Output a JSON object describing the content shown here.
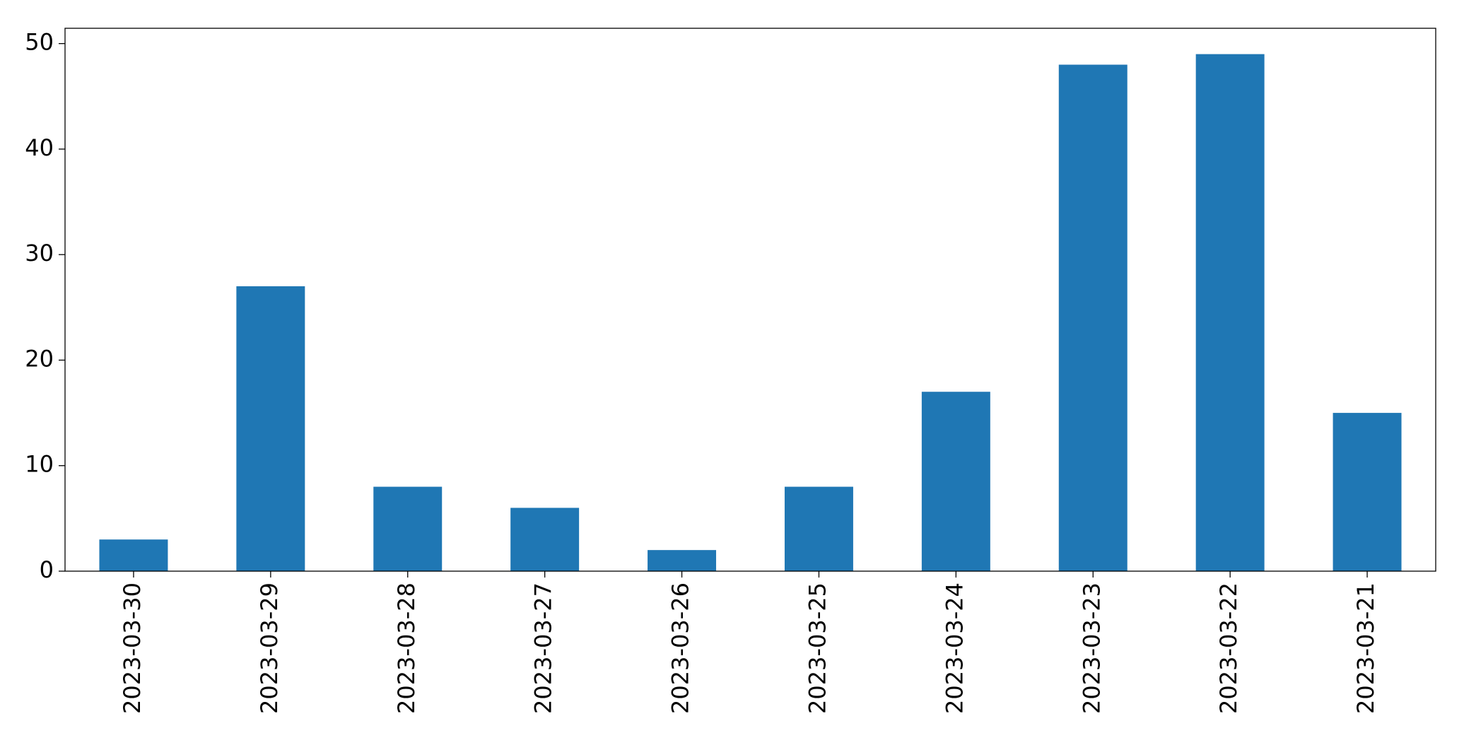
{
  "chart_data": {
    "type": "bar",
    "categories": [
      "2023-03-30",
      "2023-03-29",
      "2023-03-28",
      "2023-03-27",
      "2023-03-26",
      "2023-03-25",
      "2023-03-24",
      "2023-03-23",
      "2023-03-22",
      "2023-03-21"
    ],
    "values": [
      3,
      27,
      8,
      6,
      2,
      8,
      17,
      48,
      49,
      15
    ],
    "color": "#1f77b4",
    "ylim": [
      0,
      51.45
    ],
    "yticks": [
      0,
      10,
      20,
      30,
      40,
      50
    ],
    "grid": false
  }
}
